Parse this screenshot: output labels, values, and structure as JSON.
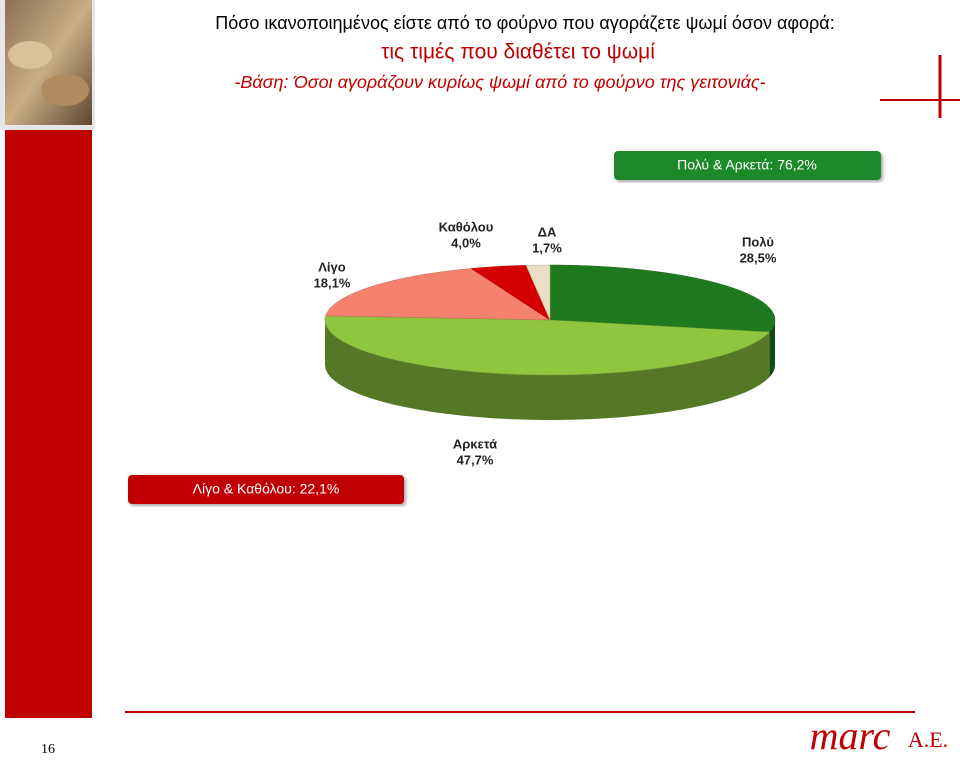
{
  "header": {
    "title": "Πόσο ικανοποιημένος είστε από το φούρνο που αγοράζετε ψωμί όσον αφορά:",
    "subtitle": "τις τιμές που διαθέτει το ψωμί",
    "base": "-Βάση: Όσοι αγοράζουν κυρίως ψωμί από το φούρνο της γειτονιάς-"
  },
  "chart_data": {
    "type": "pie",
    "categories": [
      "Πολύ",
      "Αρκετά",
      "Λίγο",
      "Καθόλου",
      "ΔΑ"
    ],
    "values": [
      28.5,
      47.7,
      18.1,
      4.0,
      1.7
    ],
    "value_labels": [
      "28,5%",
      "47,7%",
      "18,1%",
      "4,0%",
      "1,7%"
    ],
    "colors": [
      "#1f7a1f",
      "#8ec63f",
      "#f4826e",
      "#d40000",
      "#eadfc4"
    ],
    "annotations": [
      "Πολύ & Αρκετά: 76,2%",
      "Λίγο & Καθόλου: 22,1%"
    ]
  },
  "footer": {
    "page": "16",
    "logo": "marc",
    "logo_suffix": "A.E."
  }
}
